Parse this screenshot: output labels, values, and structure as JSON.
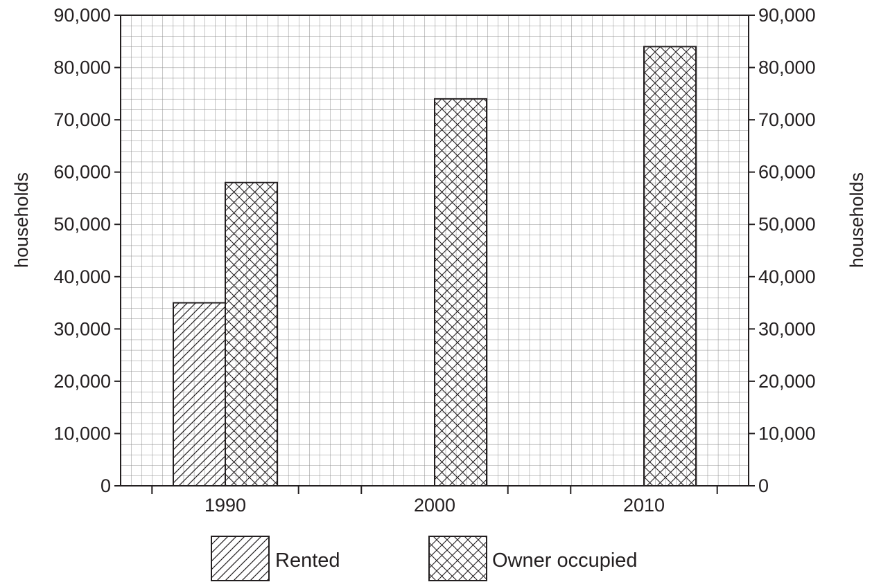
{
  "chart_data": {
    "type": "bar",
    "categories": [
      "1990",
      "2000",
      "2010"
    ],
    "series": [
      {
        "name": "Rented",
        "values": [
          35000,
          null,
          null
        ],
        "pattern": "diagonal-hatch"
      },
      {
        "name": "Owner occupied",
        "values": [
          58000,
          74000,
          84000
        ],
        "pattern": "cross-hatch"
      }
    ],
    "ylabel_left": "households",
    "ylabel_right": "households",
    "ylim": [
      0,
      90000
    ],
    "y_ticks": [
      "0",
      "10,000",
      "20,000",
      "30,000",
      "40,000",
      "50,000",
      "60,000",
      "70,000",
      "80,000",
      "90,000"
    ],
    "grid": true,
    "legend_placement": "bottom"
  }
}
